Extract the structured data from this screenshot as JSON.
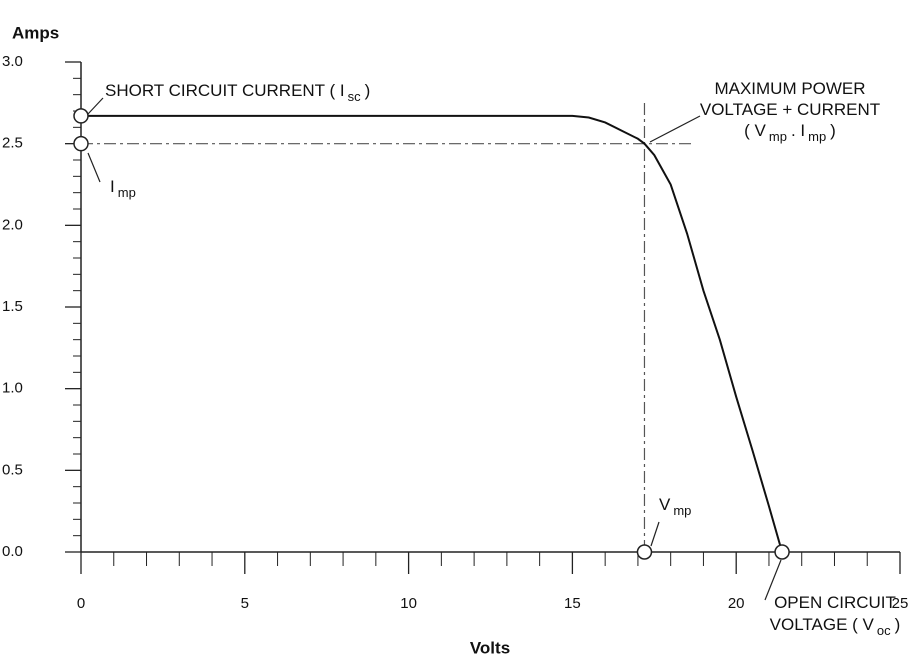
{
  "chart_data": {
    "type": "line",
    "ylabel": "Amps",
    "xlabel": "Volts",
    "x": [
      0,
      15,
      15.5,
      16,
      16.5,
      17,
      17.2,
      17.5,
      18,
      18.5,
      19,
      19.5,
      20,
      20.5,
      21,
      21.4
    ],
    "series": [
      {
        "name": "I-V curve",
        "color": "#111111",
        "values": [
          2.67,
          2.67,
          2.66,
          2.63,
          2.58,
          2.53,
          2.5,
          2.43,
          2.25,
          1.95,
          1.6,
          1.3,
          0.95,
          0.62,
          0.28,
          0
        ]
      }
    ],
    "points": {
      "x": [
        0,
        0,
        17.2,
        21.4
      ],
      "values": [
        2.67,
        2.5,
        0,
        0
      ]
    },
    "xlim": [
      0,
      25
    ],
    "ylim": [
      0,
      3
    ],
    "xticks": [
      0,
      5,
      10,
      15,
      20,
      25
    ],
    "yticks": [
      {
        "value": 0,
        "label": "0.0"
      },
      0.5,
      {
        "value": 1,
        "label": "1.0"
      },
      1.5,
      {
        "value": 2,
        "label": "2.0"
      },
      2.5,
      {
        "value": 3,
        "label": "3.0"
      }
    ],
    "xminorticks": [
      1,
      2,
      3,
      4,
      6,
      7,
      8,
      9,
      11,
      12,
      13,
      14,
      16,
      17,
      18,
      19,
      21,
      22,
      23,
      24
    ],
    "yminorticks": [
      0.1,
      0.2,
      0.3,
      0.4,
      0.6,
      0.7,
      0.8,
      0.9,
      1.1,
      1.2,
      1.3,
      1.4,
      1.6,
      1.7,
      1.8,
      1.9,
      2.1,
      2.2,
      2.3,
      2.4,
      2.6,
      2.7,
      2.8,
      2.9
    ],
    "annotations": [
      {
        "lines": [
          [
            {
              "text": "SHORT CIRCUIT CURRENT ( I"
            },
            {
              "sub": "sc"
            },
            {
              "text": ")"
            }
          ]
        ]
      },
      {
        "lines": [
          [
            {
              "text": "I"
            },
            {
              "sub": "mp"
            }
          ]
        ]
      },
      {
        "lines": [
          [
            {
              "text": "MAXIMUM POWER"
            }
          ],
          [
            {
              "text": "VOLTAGE + CURRENT"
            }
          ],
          [
            {
              "text": "( V"
            },
            {
              "sub": "mp"
            },
            {
              "text": ". I"
            },
            {
              "sub": "mp"
            },
            {
              "text": ")"
            }
          ]
        ]
      },
      {
        "lines": [
          [
            {
              "text": "V"
            },
            {
              "sub": "mp"
            }
          ]
        ]
      },
      {
        "lines": [
          [
            {
              "text": "OPEN CIRCUIT"
            }
          ],
          [
            {
              "text": "VOLTAGE ( V"
            },
            {
              "sub": "oc"
            },
            {
              "text": ")"
            }
          ]
        ]
      }
    ]
  }
}
